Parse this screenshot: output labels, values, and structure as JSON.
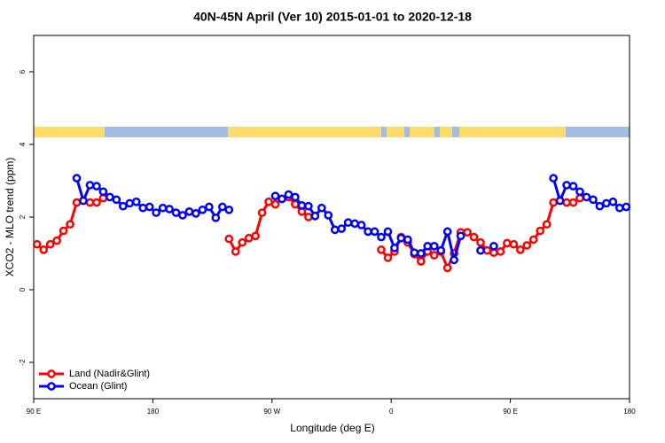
{
  "chart_data": {
    "type": "line",
    "title": "40N-45N April (Ver 10)   2015-01-01 to 2020-12-18",
    "x_label": "Longitude (deg E)",
    "y_label": "XCO2 - MLO trend (ppm)",
    "xlim": [
      90,
      540
    ],
    "ylim": [
      -3,
      7
    ],
    "xticks": [
      {
        "value": 90,
        "label": "90 E"
      },
      180,
      {
        "value": 270,
        "label": "90 W"
      },
      {
        "value": 360,
        "label": "0"
      },
      {
        "value": 450,
        "label": "90 E"
      },
      {
        "value": 540,
        "label": "180"
      }
    ],
    "yticks": [
      -2,
      0,
      2,
      4,
      6
    ],
    "legend": "bottomleft",
    "x": [
      92.5,
      97.5,
      102.5,
      107.5,
      112.5,
      117.5,
      122.5,
      127.5,
      132.5,
      137.5,
      142.5,
      147.5,
      152.5,
      157.5,
      162.5,
      167.5,
      172.5,
      177.5,
      182.5,
      187.5,
      192.5,
      197.5,
      202.5,
      207.5,
      212.5,
      217.5,
      222.5,
      227.5,
      232.5,
      237.5,
      242.5,
      247.5,
      252.5,
      257.5,
      262.5,
      267.5,
      272.5,
      277.5,
      282.5,
      287.5,
      292.5,
      297.5,
      302.5,
      307.5,
      312.5,
      317.5,
      322.5,
      327.5,
      332.5,
      337.5,
      342.5,
      347.5,
      352.5,
      357.5,
      362.5,
      367.5,
      372.5,
      377.5,
      382.5,
      387.5,
      392.5,
      397.5,
      402.5,
      407.5,
      412.5,
      417.5,
      422.5,
      427.5,
      432.5,
      437.5,
      442.5,
      447.5,
      452.5,
      457.5,
      462.5,
      467.5,
      472.5,
      477.5,
      482.5,
      487.5,
      492.5,
      497.5,
      502.5,
      507.5,
      512.5,
      517.5,
      522.5,
      527.5,
      532.5,
      537.5
    ],
    "series": [
      {
        "name": "Land (Nadir&Glint)",
        "color": "#ff0000",
        "values": [
          1.25,
          1.1,
          1.25,
          1.35,
          1.62,
          1.8,
          2.4,
          2.45,
          2.4,
          2.4,
          2.52,
          null,
          null,
          null,
          null,
          null,
          null,
          null,
          null,
          null,
          null,
          null,
          null,
          null,
          null,
          null,
          null,
          null,
          null,
          1.4,
          1.05,
          1.3,
          1.42,
          1.48,
          2.12,
          2.42,
          2.35,
          2.5,
          2.55,
          2.35,
          2.15,
          2.0,
          null,
          null,
          null,
          null,
          null,
          null,
          null,
          null,
          null,
          null,
          1.1,
          0.88,
          1.05,
          1.45,
          1.3,
          0.98,
          0.78,
          1.05,
          0.95,
          1.05,
          0.6,
          1.0,
          1.58,
          1.58,
          1.45,
          1.3,
          1.08,
          1.02,
          1.05,
          1.28,
          1.25,
          1.1,
          1.22,
          1.38,
          1.62,
          1.8,
          2.4,
          2.45,
          2.4,
          2.4,
          2.52,
          null,
          null,
          null,
          null,
          null,
          null,
          null
        ]
      },
      {
        "name": "Ocean (Glint)",
        "color": "#0000ff",
        "values": [
          null,
          null,
          null,
          null,
          null,
          null,
          3.07,
          2.45,
          2.88,
          2.85,
          2.7,
          2.55,
          2.48,
          2.3,
          2.38,
          2.42,
          2.25,
          2.28,
          2.12,
          2.25,
          2.22,
          2.12,
          2.05,
          2.15,
          2.1,
          2.2,
          2.28,
          1.98,
          2.28,
          2.2,
          null,
          null,
          null,
          null,
          null,
          null,
          2.58,
          2.5,
          2.62,
          2.55,
          2.32,
          2.3,
          2.03,
          2.25,
          2.05,
          1.65,
          1.68,
          1.85,
          1.82,
          1.78,
          1.6,
          1.6,
          1.45,
          1.6,
          1.15,
          1.42,
          1.38,
          1.02,
          1.0,
          1.2,
          1.2,
          1.08,
          1.6,
          0.82,
          1.48,
          null,
          null,
          1.08,
          null,
          1.2,
          null,
          null,
          null,
          null,
          null,
          null,
          null,
          null,
          3.07,
          2.45,
          2.88,
          2.85,
          2.7,
          2.55,
          2.48,
          2.3,
          2.38,
          2.42,
          2.25,
          2.28
        ]
      }
    ]
  }
}
